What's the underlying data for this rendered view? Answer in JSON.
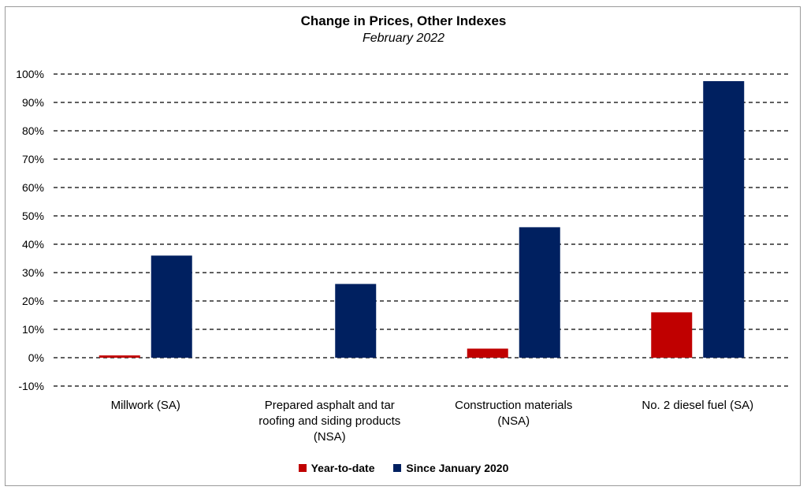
{
  "chart_data": {
    "type": "bar",
    "title": "Change in Prices, Other Indexes",
    "subtitle": "February 2022",
    "categories": [
      [
        "Millwork (SA)"
      ],
      [
        "Prepared asphalt and tar",
        "roofing and siding products",
        "(NSA)"
      ],
      [
        "Construction materials",
        "(NSA)"
      ],
      [
        "No. 2 diesel fuel (SA)"
      ]
    ],
    "series": [
      {
        "name": "Year-to-date",
        "color": "#c00000",
        "values": [
          0.8,
          0,
          3.2,
          16
        ]
      },
      {
        "name": "Since January 2020",
        "color": "#002060",
        "values": [
          36,
          26,
          46,
          97.5
        ]
      }
    ],
    "ylim": [
      -10,
      100
    ],
    "yticks": [
      -10,
      0,
      10,
      20,
      30,
      40,
      50,
      60,
      70,
      80,
      90,
      100
    ],
    "ytick_labels": [
      "-10%",
      "0%",
      "10%",
      "20%",
      "30%",
      "40%",
      "50%",
      "60%",
      "70%",
      "80%",
      "90%",
      "100%"
    ],
    "grid": true,
    "legend_position": "bottom"
  }
}
